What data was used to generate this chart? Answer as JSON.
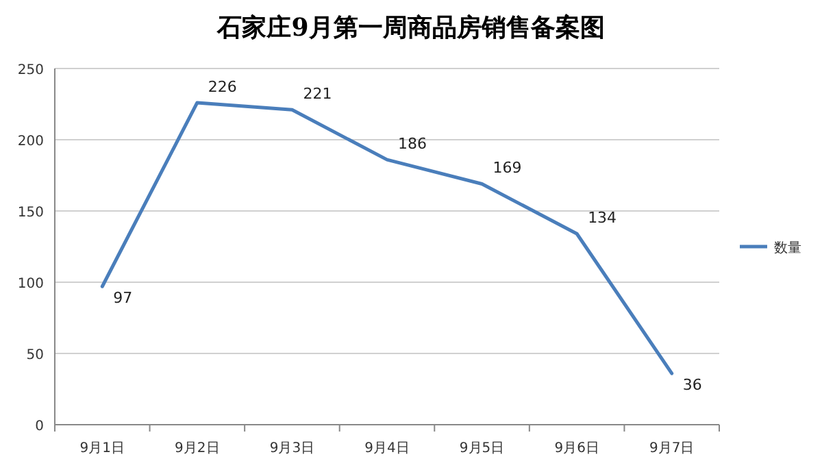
{
  "chart_data": {
    "type": "line",
    "title": "石家庄9月第一周商品房销售备案图",
    "categories": [
      "9月1日",
      "9月2日",
      "9月3日",
      "9月4日",
      "9月5日",
      "9月6日",
      "9月7日"
    ],
    "series": [
      {
        "name": "数量",
        "color": "#4a7ebb",
        "values": [
          97,
          226,
          221,
          186,
          169,
          134,
          36
        ]
      }
    ],
    "ylim": [
      0,
      250
    ],
    "yticks": [
      0,
      50,
      100,
      150,
      200,
      250
    ],
    "grid": "y",
    "legend": "right",
    "data_labels": true,
    "marker": "none",
    "line_style": "solid"
  }
}
